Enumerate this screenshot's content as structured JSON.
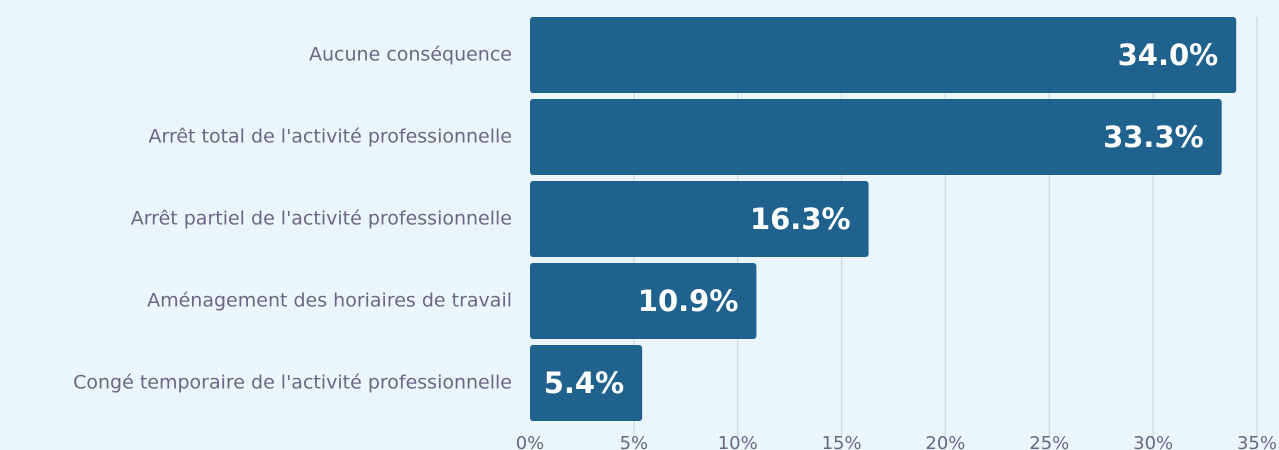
{
  "chart_data": {
    "type": "barh",
    "categories": [
      "Aucune conséquence",
      "Arrêt total de l'activité professionnelle",
      "Arrêt partiel de l'activité professionnelle",
      "Aménagement des horiaires de travail",
      "Congé temporaire de l'activité professionnelle"
    ],
    "values": [
      34.0,
      33.3,
      16.3,
      10.9,
      5.4
    ],
    "value_labels": [
      "34.0%",
      "33.3%",
      "16.3%",
      "10.9%",
      "5.4%"
    ],
    "color": "#1f628e",
    "xlim": [
      0,
      35
    ],
    "xticks": [
      {
        "value": 0,
        "label": "0%"
      },
      {
        "value": 5,
        "label": "5%"
      },
      {
        "value": 10,
        "label": "10%"
      },
      {
        "value": 15,
        "label": "15%"
      },
      {
        "value": 20,
        "label": "20%"
      },
      {
        "value": 25,
        "label": "25%"
      },
      {
        "value": 30,
        "label": "30%"
      },
      {
        "value": 35,
        "label": "35%"
      }
    ],
    "grid": true
  }
}
